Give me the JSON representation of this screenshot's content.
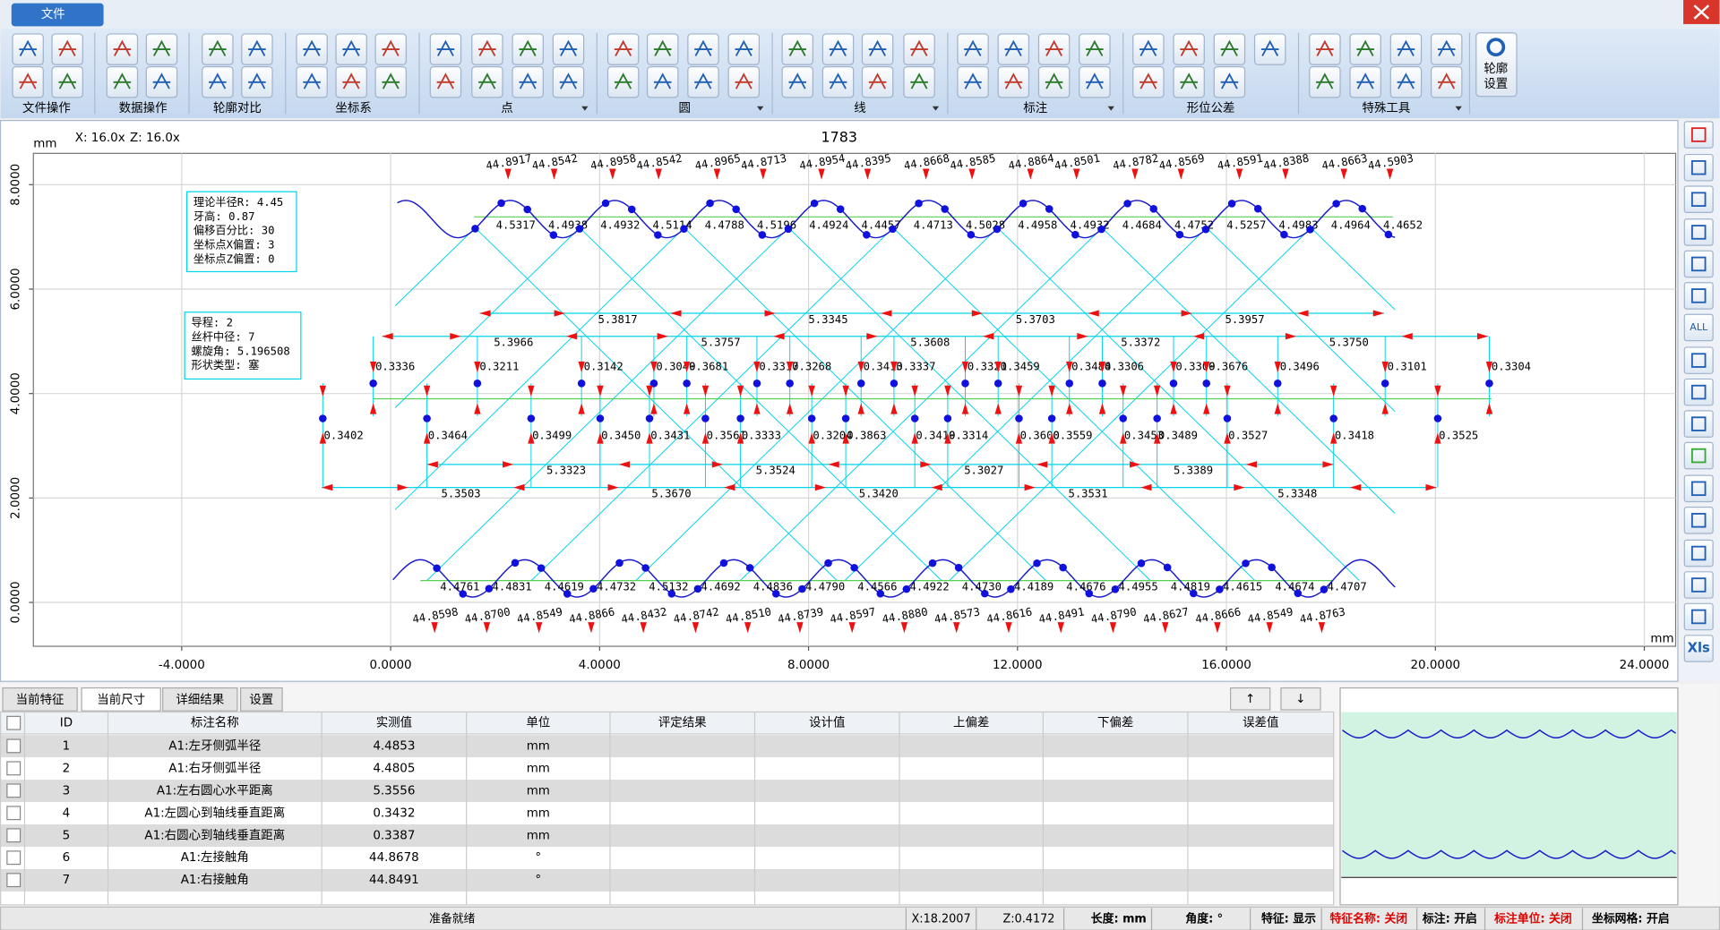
{
  "menu": {
    "file_tab": "文件"
  },
  "toolbar": {
    "groups": [
      "文件操作",
      "数据操作",
      "轮廓对比",
      "坐标系",
      "点",
      "圆",
      "线",
      "标注",
      "形位公差",
      "特殊工具"
    ],
    "profile_settings": [
      "轮廓",
      "设置"
    ]
  },
  "plot": {
    "unit_y": "mm",
    "zoom_x": "X: 16.0x",
    "zoom_z": "Z: 16.0x",
    "title": "1783",
    "unit_x": "mm",
    "xlim": [
      -6.84,
      24.6
    ],
    "ylim": [
      -0.84,
      8.6
    ],
    "grid": true,
    "xticks": [
      {
        "value": -4,
        "label": "-4.0000"
      },
      {
        "value": 0,
        "label": "0.0000"
      },
      {
        "value": 4,
        "label": "4.0000"
      },
      {
        "value": 8,
        "label": "8.0000"
      },
      {
        "value": 12,
        "label": "12.0000"
      },
      {
        "value": 16,
        "label": "16.0000"
      },
      {
        "value": 20,
        "label": "20.0000"
      },
      {
        "value": 24,
        "label": "24.0000"
      }
    ],
    "yticks": [
      {
        "value": 0,
        "label": "0.0000"
      },
      {
        "value": 2,
        "label": "2.0000"
      },
      {
        "value": 4,
        "label": "4.0000"
      },
      {
        "value": 6,
        "label": "6.0000"
      },
      {
        "value": 8,
        "label": "8.0000"
      }
    ],
    "info_box_1": [
      "理论半径R: 4.45",
      "牙高: 0.87",
      "偏移百分比: 30",
      "坐标点X偏置: 3",
      "坐标点Z偏置: 0"
    ],
    "info_box_2": [
      "导程: 2",
      "丝杆中径: 7",
      "螺旋角: 5.196508",
      "形状类型: 塞"
    ],
    "top_angle_labels": [
      "44.8917",
      "44.8542",
      "44.8958",
      "44.8542",
      "44.8965",
      "44.8713",
      "44.8954",
      "44.8395",
      "44.8668",
      "44.8585",
      "44.8864",
      "44.8501",
      "44.8782",
      "44.8569",
      "44.8591",
      "44.8388",
      "44.8663",
      "44.5903"
    ],
    "top_radius_labels": [
      "4.5317",
      "4.4938",
      "4.4932",
      "4.5114",
      "4.4788",
      "4.5196",
      "4.4924",
      "4.4457",
      "4.4713",
      "4.5028",
      "4.4958",
      "4.4932",
      "4.4684",
      "4.4752",
      "4.5257",
      "4.4983",
      "4.4964",
      "4.4652"
    ],
    "pitch_labels_top_1": [
      "5.3817",
      "5.3345",
      "5.3703",
      "5.3957"
    ],
    "pitch_labels_top_2": [
      "5.3966",
      "5.3757",
      "5.3608",
      "5.3372",
      "5.3750"
    ],
    "offset_labels_upper": [
      "0.3336",
      "0.3211",
      "0.3142",
      "0.3049",
      "0.3681",
      "0.3317",
      "0.3268",
      "0.3413",
      "0.3337",
      "0.3321",
      "0.3459",
      "0.3484",
      "0.3306",
      "0.3309",
      "0.3676",
      "0.3496",
      "0.3101",
      "0.3304"
    ],
    "offset_labels_lower": [
      "0.3402",
      "0.3464",
      "0.3499",
      "0.3450",
      "0.3431",
      "0.3561",
      "0.3333",
      "0.3204",
      "0.3863",
      "0.3419",
      "0.3314",
      "0.3600",
      "0.3559",
      "0.3453",
      "0.3489",
      "0.3527",
      "0.3418",
      "0.3525"
    ],
    "pitch_labels_bottom_1": [
      "5.3323",
      "5.3524",
      "5.3027",
      "5.3389"
    ],
    "pitch_labels_bottom_2": [
      "5.3503",
      "5.3670",
      "5.3420",
      "5.3531",
      "5.3348"
    ],
    "bottom_radius_labels": [
      "4.4761",
      "4.4831",
      "4.4619",
      "4.4732",
      "4.5132",
      "4.4692",
      "4.4836",
      "4.4790",
      "4.4566",
      "4.4922",
      "4.4730",
      "4.4189",
      "4.4676",
      "4.4955",
      "4.4819",
      "4.4615",
      "4.4674",
      "4.4707"
    ],
    "bottom_angle_labels": [
      "44.8598",
      "44.8700",
      "44.8549",
      "44.8866",
      "44.8432",
      "44.8742",
      "44.8510",
      "44.8739",
      "44.8597",
      "44.8880",
      "44.8573",
      "44.8616",
      "44.8491",
      "44.8790",
      "44.8627",
      "44.8666",
      "44.8549",
      "44.8763"
    ]
  },
  "sidebar": [
    "ALL",
    "Xls"
  ],
  "tabs": [
    "当前特征",
    "当前尺寸",
    "详细结果",
    "设置"
  ],
  "table_nav": [
    "↑",
    "↓"
  ],
  "table": {
    "columns": [
      "ID",
      "标注名称",
      "实测值",
      "单位",
      "评定结果",
      "设计值",
      "上偏差",
      "下偏差",
      "误差值"
    ],
    "rows": [
      [
        "1",
        "A1:左牙侧弧半径",
        "4.4853",
        "mm"
      ],
      [
        "2",
        "A1:右牙侧弧半径",
        "4.4805",
        "mm"
      ],
      [
        "3",
        "A1:左右圆心水平距离",
        "5.3556",
        "mm"
      ],
      [
        "4",
        "A1:左圆心到轴线垂直距离",
        "0.3432",
        "mm"
      ],
      [
        "5",
        "A1:右圆心到轴线垂直距离",
        "0.3387",
        "mm"
      ],
      [
        "6",
        "A1:左接触角",
        "44.8678",
        "°"
      ],
      [
        "7",
        "A1:右接触角",
        "44.8491",
        "°"
      ]
    ]
  },
  "status": [
    "准备就绪",
    "X:18.2007",
    "Z:0.4172",
    "长度: mm",
    "角度: °",
    "特征: 显示",
    "特征名称: 关闭",
    "标注: 开启",
    "标注单位: 关闭",
    "坐标网格: 开启"
  ]
}
